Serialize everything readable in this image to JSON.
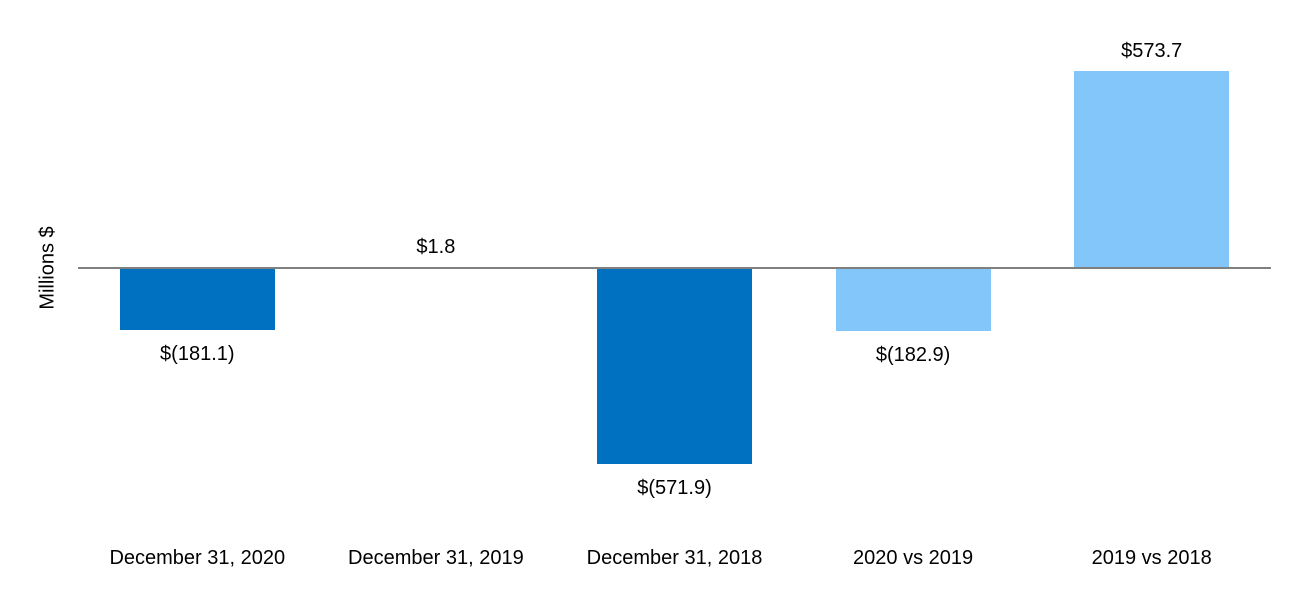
{
  "chart_data": {
    "type": "bar",
    "title": "",
    "xlabel": "",
    "ylabel": "Millions $",
    "categories": [
      "December 31, 2020",
      "December 31, 2019",
      "December 31, 2018",
      "2020 vs 2019",
      "2019 vs 2018"
    ],
    "values": [
      -181.1,
      1.8,
      -571.9,
      -182.9,
      573.7
    ],
    "value_labels": [
      "$(181.1)",
      "$1.8",
      "$(571.9)",
      "$(182.9)",
      "$573.7"
    ],
    "bar_colors": [
      "#0070C0",
      "#0070C0",
      "#0070C0",
      "#82C6FA",
      "#82C6FA"
    ],
    "colors": {
      "dark_blue": "#0070C0",
      "light_blue": "#82C6FA",
      "axis_gray": "#808080",
      "text": "#000000",
      "background": "#FFFFFF"
    },
    "grid": false,
    "legend": false,
    "baseline_value": 0,
    "units": "Millions $"
  }
}
